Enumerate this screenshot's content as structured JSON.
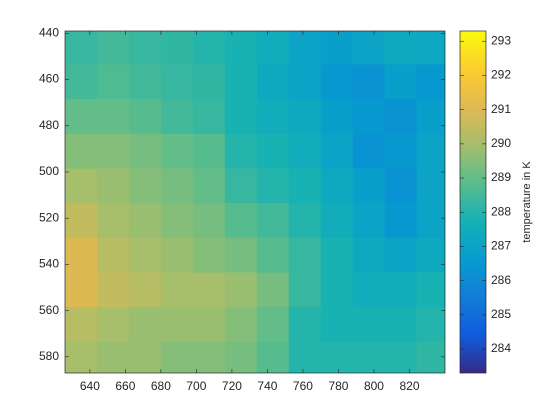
{
  "chart_data": {
    "type": "heatmap",
    "colorbar_label": "temperature in K",
    "colormap": "parula",
    "x": [
      635,
      653,
      671,
      689,
      707,
      725,
      743,
      761,
      779,
      797,
      815,
      833
    ],
    "y": [
      446,
      461,
      476,
      491,
      506,
      521,
      536,
      551,
      566,
      581
    ],
    "values": [
      [
        288.3,
        288.5,
        288.3,
        288.2,
        288.0,
        287.8,
        287.5,
        287.0,
        286.8,
        287.0,
        287.3,
        287.2
      ],
      [
        288.5,
        288.7,
        288.5,
        288.3,
        288.2,
        287.8,
        287.3,
        287.0,
        286.5,
        286.3,
        286.8,
        286.5
      ],
      [
        289.0,
        289.0,
        288.8,
        288.5,
        288.3,
        287.8,
        287.5,
        287.3,
        286.8,
        286.5,
        286.3,
        286.8
      ],
      [
        289.5,
        289.5,
        289.3,
        289.0,
        288.8,
        288.0,
        287.8,
        287.5,
        287.0,
        286.3,
        286.5,
        287.0
      ],
      [
        290.0,
        289.8,
        289.5,
        289.3,
        289.0,
        288.3,
        288.0,
        287.8,
        287.3,
        286.8,
        286.3,
        287.0
      ],
      [
        290.5,
        290.0,
        289.8,
        289.5,
        289.3,
        288.8,
        288.5,
        288.0,
        287.5,
        287.0,
        286.5,
        287.0
      ],
      [
        291.0,
        290.3,
        290.0,
        289.8,
        289.5,
        289.3,
        288.8,
        288.3,
        287.8,
        287.3,
        287.0,
        287.3
      ],
      [
        291.0,
        290.5,
        290.3,
        290.0,
        290.0,
        289.8,
        289.3,
        288.3,
        287.8,
        287.5,
        287.5,
        287.8
      ],
      [
        290.3,
        290.0,
        289.8,
        289.8,
        289.8,
        289.5,
        289.0,
        288.0,
        287.8,
        287.8,
        287.8,
        288.0
      ],
      [
        290.0,
        289.8,
        289.8,
        289.5,
        289.5,
        289.3,
        288.8,
        288.0,
        288.0,
        288.0,
        288.0,
        288.2
      ]
    ],
    "xlim": [
      626,
      840
    ],
    "xticks": [
      640,
      660,
      680,
      700,
      720,
      740,
      760,
      780,
      800,
      820
    ],
    "ylim": [
      439,
      587
    ],
    "yticks": [
      440,
      460,
      480,
      500,
      520,
      540,
      560,
      580
    ],
    "y_reversed": true,
    "clim": [
      283.3,
      293.3
    ],
    "cticks": [
      284,
      285,
      286,
      287,
      288,
      289,
      290,
      291,
      292,
      293
    ]
  }
}
